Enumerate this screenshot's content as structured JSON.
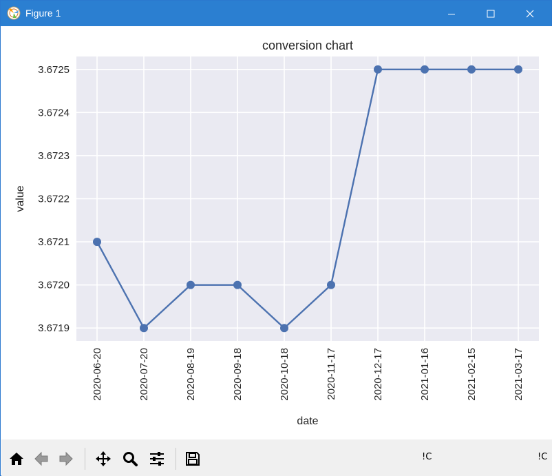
{
  "window": {
    "title": "Figure 1",
    "colors": {
      "titlebar": "#2b7fd1",
      "toolbar": "#f0f0f0"
    }
  },
  "toolbar": {
    "buttons": [
      {
        "name": "home-button",
        "icon": "home-icon"
      },
      {
        "name": "back-button",
        "icon": "arrow-left-icon"
      },
      {
        "name": "forward-button",
        "icon": "arrow-right-icon"
      },
      {
        "name": "pan-button",
        "icon": "move-arrows-icon"
      },
      {
        "name": "zoom-button",
        "icon": "magnifier-icon"
      },
      {
        "name": "configure-subplots-button",
        "icon": "sliders-icon"
      },
      {
        "name": "save-button",
        "icon": "floppy-disk-icon"
      }
    ],
    "status_left": "!C",
    "status_right": "!C"
  },
  "chart_data": {
    "type": "line",
    "title": "conversion chart",
    "xlabel": "date",
    "ylabel": "value",
    "x": [
      "2020-06-20",
      "2020-07-20",
      "2020-08-19",
      "2020-09-18",
      "2020-10-18",
      "2020-11-17",
      "2020-12-17",
      "2021-01-16",
      "2021-02-15",
      "2021-03-17"
    ],
    "series": [
      {
        "values": [
          3.6721,
          3.6719,
          3.672,
          3.672,
          3.6719,
          3.672,
          3.6725,
          3.6725,
          3.6725,
          3.6725
        ]
      }
    ],
    "yticks": [
      "3.6719",
      "3.6720",
      "3.6721",
      "3.6722",
      "3.6723",
      "3.6724",
      "3.6725"
    ],
    "ylim": [
      3.67187,
      3.67253
    ],
    "grid": true,
    "colors": {
      "line": "#4c72b0",
      "plot_bg": "#eaeaf2",
      "grid": "#ffffff"
    }
  }
}
